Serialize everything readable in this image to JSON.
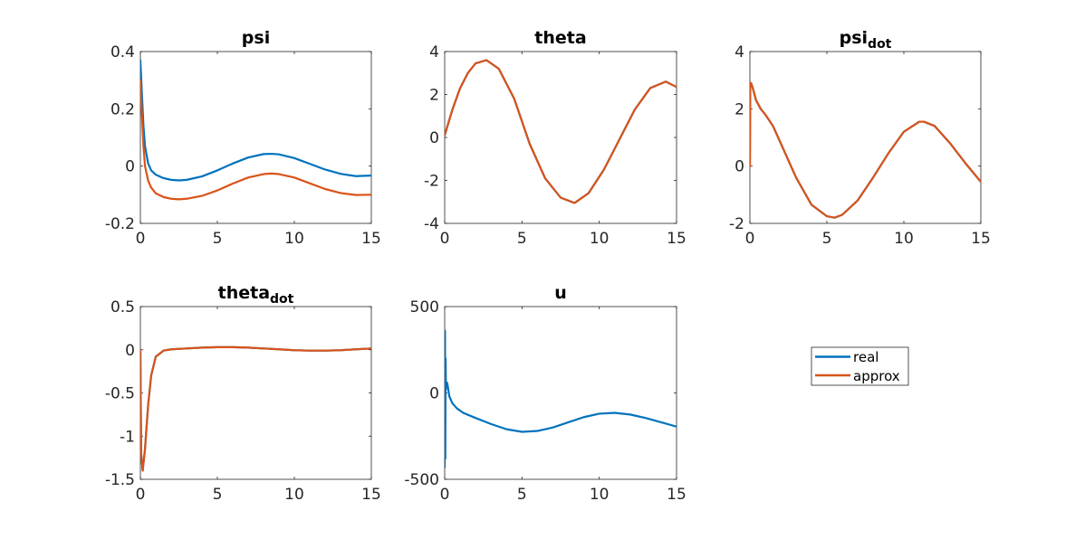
{
  "colors": {
    "real": "#0072BD",
    "approx": "#D95319",
    "axis": "#262626"
  },
  "legend": {
    "entries": [
      "real",
      "approx"
    ]
  },
  "chart_data": [
    {
      "id": "psi",
      "type": "line",
      "title": "psi",
      "title_sub": "",
      "xlim": [
        0,
        15
      ],
      "ylim": [
        -0.2,
        0.4
      ],
      "xticks": [
        0,
        5,
        10,
        15
      ],
      "yticks": [
        -0.2,
        0,
        0.2,
        0.4
      ],
      "xtick_labels": [
        "0",
        "5",
        "10",
        "15"
      ],
      "ytick_labels": [
        "-0.2",
        "0",
        "0.2",
        "0.4"
      ],
      "series": [
        {
          "name": "real",
          "x": [
            0,
            0.1,
            0.2,
            0.3,
            0.5,
            0.7,
            1,
            1.5,
            2,
            2.5,
            3,
            4,
            5,
            6,
            7,
            8,
            8.5,
            9,
            10,
            11,
            12,
            13,
            14,
            15
          ],
          "y": [
            0.37,
            0.25,
            0.14,
            0.07,
            0.01,
            -0.015,
            -0.03,
            -0.042,
            -0.048,
            -0.05,
            -0.048,
            -0.036,
            -0.015,
            0.009,
            0.03,
            0.042,
            0.043,
            0.041,
            0.028,
            0.008,
            -0.012,
            -0.027,
            -0.035,
            -0.033
          ]
        },
        {
          "name": "approx",
          "x": [
            0,
            0.1,
            0.2,
            0.3,
            0.5,
            0.7,
            1,
            1.5,
            2,
            2.5,
            3,
            4,
            5,
            6,
            7,
            8,
            8.5,
            9,
            10,
            11,
            12,
            13,
            14,
            15
          ],
          "y": [
            0.3,
            0.18,
            0.07,
            0.0,
            -0.05,
            -0.075,
            -0.095,
            -0.108,
            -0.114,
            -0.116,
            -0.114,
            -0.104,
            -0.085,
            -0.061,
            -0.04,
            -0.028,
            -0.026,
            -0.028,
            -0.04,
            -0.06,
            -0.08,
            -0.094,
            -0.101,
            -0.1
          ]
        }
      ]
    },
    {
      "id": "theta",
      "type": "line",
      "title": "theta",
      "title_sub": "",
      "xlim": [
        0,
        15
      ],
      "ylim": [
        -4,
        4
      ],
      "xticks": [
        0,
        5,
        10,
        15
      ],
      "yticks": [
        -4,
        -2,
        0,
        2,
        4
      ],
      "xtick_labels": [
        "0",
        "5",
        "10",
        "15"
      ],
      "ytick_labels": [
        "-4",
        "-2",
        "0",
        "2",
        "4"
      ],
      "series": [
        {
          "name": "real",
          "x": [
            0,
            0.5,
            1,
            1.5,
            2,
            2.7,
            3.5,
            4.5,
            5.5,
            6.5,
            7.5,
            8.4,
            9.3,
            10.3,
            11.3,
            12.3,
            13.3,
            14.3,
            15
          ],
          "y": [
            0.1,
            1.3,
            2.3,
            3.0,
            3.45,
            3.6,
            3.2,
            1.8,
            -0.3,
            -1.9,
            -2.8,
            -3.05,
            -2.6,
            -1.5,
            -0.1,
            1.3,
            2.3,
            2.6,
            2.35
          ]
        },
        {
          "name": "approx",
          "x": [
            0,
            0.5,
            1,
            1.5,
            2,
            2.7,
            3.5,
            4.5,
            5.5,
            6.5,
            7.5,
            8.4,
            9.3,
            10.3,
            11.3,
            12.3,
            13.3,
            14.3,
            15
          ],
          "y": [
            0.1,
            1.3,
            2.3,
            3.0,
            3.45,
            3.6,
            3.2,
            1.8,
            -0.3,
            -1.9,
            -2.8,
            -3.05,
            -2.6,
            -1.5,
            -0.1,
            1.3,
            2.3,
            2.6,
            2.35
          ]
        }
      ]
    },
    {
      "id": "psi_dot",
      "type": "line",
      "title": "psi",
      "title_sub": "dot",
      "xlim": [
        0,
        15
      ],
      "ylim": [
        -2,
        4
      ],
      "xticks": [
        0,
        5,
        10,
        15
      ],
      "yticks": [
        -2,
        0,
        2,
        4
      ],
      "xtick_labels": [
        "0",
        "5",
        "10",
        "15"
      ],
      "ytick_labels": [
        "-2",
        "0",
        "2",
        "4"
      ],
      "series": [
        {
          "name": "real",
          "x": [
            0,
            0.02,
            0.08,
            0.2,
            0.4,
            0.7,
            1,
            1.5,
            2,
            3,
            4,
            5,
            5.5,
            6,
            7,
            8,
            9,
            10,
            11,
            11.3,
            12,
            13,
            14,
            15
          ],
          "y": [
            0,
            2.9,
            2.9,
            2.7,
            2.3,
            2.0,
            1.8,
            1.4,
            0.8,
            -0.4,
            -1.35,
            -1.75,
            -1.8,
            -1.7,
            -1.2,
            -0.4,
            0.45,
            1.2,
            1.55,
            1.55,
            1.4,
            0.8,
            0.1,
            -0.55
          ]
        },
        {
          "name": "approx",
          "x": [
            0,
            0.02,
            0.08,
            0.2,
            0.4,
            0.7,
            1,
            1.5,
            2,
            3,
            4,
            5,
            5.5,
            6,
            7,
            8,
            9,
            10,
            11,
            11.3,
            12,
            13,
            14,
            15
          ],
          "y": [
            0,
            2.9,
            2.9,
            2.7,
            2.3,
            2.0,
            1.8,
            1.4,
            0.8,
            -0.4,
            -1.35,
            -1.75,
            -1.8,
            -1.7,
            -1.2,
            -0.4,
            0.45,
            1.2,
            1.55,
            1.55,
            1.4,
            0.8,
            0.1,
            -0.55
          ]
        }
      ]
    },
    {
      "id": "theta_dot",
      "type": "line",
      "title": "theta",
      "title_sub": "dot",
      "xlim": [
        0,
        15
      ],
      "ylim": [
        -1.5,
        0.5
      ],
      "xticks": [
        0,
        5,
        10,
        15
      ],
      "yticks": [
        -1.5,
        -1,
        -0.5,
        0,
        0.5
      ],
      "xtick_labels": [
        "0",
        "5",
        "10",
        "15"
      ],
      "ytick_labels": [
        "-1.5",
        "-1",
        "-0.5",
        "0",
        "0.5"
      ],
      "series": [
        {
          "name": "real",
          "x": [
            0,
            0.05,
            0.15,
            0.3,
            0.5,
            0.7,
            1,
            1.5,
            2,
            3,
            4,
            5,
            6,
            7,
            8,
            9,
            10,
            11,
            12,
            13,
            14,
            15
          ],
          "y": [
            0,
            -1.2,
            -1.4,
            -1.15,
            -0.65,
            -0.3,
            -0.08,
            -0.01,
            0.005,
            0.015,
            0.025,
            0.03,
            0.03,
            0.025,
            0.015,
            0.005,
            -0.005,
            -0.01,
            -0.01,
            -0.005,
            0.005,
            0.015
          ]
        },
        {
          "name": "approx",
          "x": [
            0,
            0.05,
            0.15,
            0.3,
            0.5,
            0.7,
            1,
            1.5,
            2,
            3,
            4,
            5,
            6,
            7,
            8,
            9,
            10,
            11,
            12,
            13,
            14,
            15
          ],
          "y": [
            0,
            -1.2,
            -1.4,
            -1.15,
            -0.65,
            -0.3,
            -0.08,
            -0.01,
            0.005,
            0.015,
            0.025,
            0.03,
            0.03,
            0.025,
            0.015,
            0.005,
            -0.005,
            -0.01,
            -0.01,
            -0.005,
            0.005,
            0.015
          ]
        }
      ]
    },
    {
      "id": "u",
      "type": "line",
      "title": "u",
      "title_sub": "",
      "xlim": [
        0,
        15
      ],
      "ylim": [
        -500,
        500
      ],
      "xticks": [
        0,
        5,
        10,
        15
      ],
      "yticks": [
        -500,
        0,
        500
      ],
      "xtick_labels": [
        "0",
        "5",
        "10",
        "15"
      ],
      "ytick_labels": [
        "-500",
        "0",
        "500"
      ],
      "series": [
        {
          "name": "real",
          "x": [
            0,
            0.02,
            0.04,
            0.06,
            0.08,
            0.1,
            0.15,
            0.2,
            0.3,
            0.5,
            0.8,
            1.2,
            2,
            3,
            4,
            5,
            6,
            7,
            8,
            9,
            10,
            11,
            12,
            13,
            14,
            15
          ],
          "y": [
            -430,
            360,
            -380,
            200,
            20,
            50,
            60,
            40,
            -20,
            -60,
            -90,
            -115,
            -145,
            -180,
            -210,
            -225,
            -220,
            -200,
            -170,
            -140,
            -120,
            -115,
            -125,
            -145,
            -170,
            -195
          ]
        }
      ]
    }
  ]
}
